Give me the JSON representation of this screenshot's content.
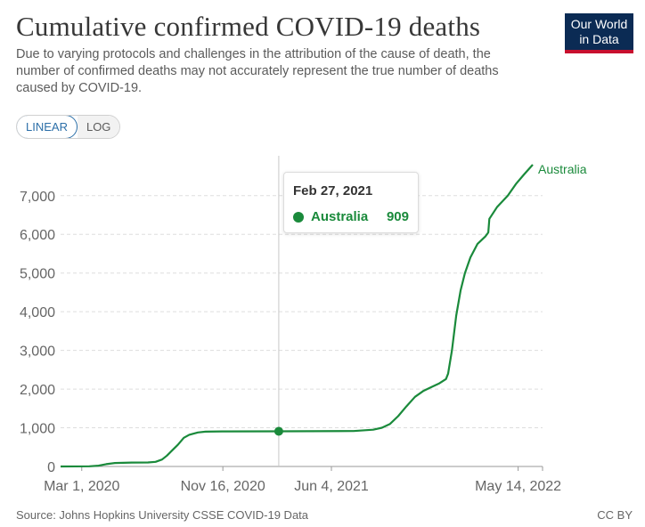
{
  "header": {
    "title": "Cumulative confirmed COVID-19 deaths",
    "subtitle": "Due to varying protocols and challenges in the attribution of the cause of death, the number of confirmed deaths may not accurately represent the true number of deaths caused by COVID-19."
  },
  "logo": {
    "line1": "Our World",
    "line2": "in Data",
    "bg_color": "#0b2b54",
    "accent_color": "#c8102e"
  },
  "toggle": {
    "linear_label": "LINEAR",
    "log_label": "LOG",
    "active": "linear"
  },
  "tooltip": {
    "date": "Feb 27, 2021",
    "series": "Australia",
    "value": "909"
  },
  "footer": {
    "source": "Source: Johns Hopkins University CSSE COVID-19 Data",
    "license": "CC BY"
  },
  "chart_data": {
    "type": "line",
    "x_type": "date",
    "xlim": [
      "2020-01-22",
      "2022-06-28"
    ],
    "ylim": [
      0,
      7800
    ],
    "y_ticks": [
      0,
      1000,
      2000,
      3000,
      4000,
      5000,
      6000,
      7000
    ],
    "y_tick_labels": [
      "0",
      "1,000",
      "2,000",
      "3,000",
      "4,000",
      "5,000",
      "6,000",
      "7,000"
    ],
    "x_ticks": [
      "2020-03-01",
      "2020-11-16",
      "2021-06-04",
      "2022-05-14"
    ],
    "x_tick_labels": [
      "Mar 1, 2020",
      "Nov 16, 2020",
      "Jun 4, 2021",
      "May 14, 2022"
    ],
    "grid": "horizontal-dashed",
    "highlight": {
      "x": "2021-02-27",
      "y": 909
    },
    "series": [
      {
        "name": "Australia",
        "color": "#1a8a3b",
        "points": [
          [
            "2020-01-22",
            0
          ],
          [
            "2020-03-15",
            5
          ],
          [
            "2020-04-01",
            20
          ],
          [
            "2020-04-15",
            60
          ],
          [
            "2020-05-01",
            90
          ],
          [
            "2020-06-01",
            102
          ],
          [
            "2020-07-01",
            104
          ],
          [
            "2020-07-15",
            120
          ],
          [
            "2020-07-27",
            180
          ],
          [
            "2020-08-05",
            280
          ],
          [
            "2020-08-15",
            420
          ],
          [
            "2020-08-25",
            560
          ],
          [
            "2020-09-05",
            740
          ],
          [
            "2020-09-15",
            820
          ],
          [
            "2020-10-01",
            880
          ],
          [
            "2020-10-15",
            900
          ],
          [
            "2020-11-15",
            907
          ],
          [
            "2021-02-27",
            909
          ],
          [
            "2021-07-15",
            915
          ],
          [
            "2021-08-20",
            950
          ],
          [
            "2021-09-05",
            1000
          ],
          [
            "2021-09-20",
            1100
          ],
          [
            "2021-10-05",
            1300
          ],
          [
            "2021-10-20",
            1550
          ],
          [
            "2021-11-05",
            1800
          ],
          [
            "2021-11-20",
            1950
          ],
          [
            "2021-12-05",
            2050
          ],
          [
            "2021-12-20",
            2150
          ],
          [
            "2022-01-01",
            2260
          ],
          [
            "2022-01-05",
            2400
          ],
          [
            "2022-01-12",
            3000
          ],
          [
            "2022-01-20",
            3900
          ],
          [
            "2022-01-28",
            4550
          ],
          [
            "2022-02-05",
            5000
          ],
          [
            "2022-02-15",
            5400
          ],
          [
            "2022-02-28",
            5750
          ],
          [
            "2022-03-15",
            5950
          ],
          [
            "2022-03-20",
            6050
          ],
          [
            "2022-03-22",
            6400
          ],
          [
            "2022-04-05",
            6700
          ],
          [
            "2022-04-25",
            7000
          ],
          [
            "2022-05-10",
            7300
          ],
          [
            "2022-05-25",
            7550
          ],
          [
            "2022-06-10",
            7800
          ]
        ]
      }
    ]
  }
}
